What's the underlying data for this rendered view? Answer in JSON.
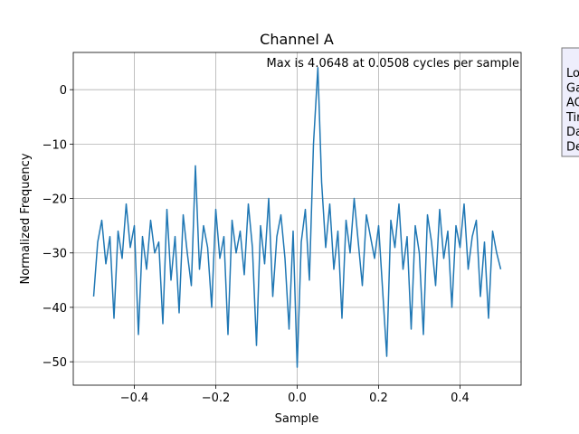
{
  "chart_data": {
    "type": "line",
    "title": "Channel A",
    "xlabel": "Sample",
    "ylabel": "Normalized Frequency",
    "annotation": "Max is 4.0648 at 0.0508 cycles per sample",
    "side_box_lines": [
      "Lo",
      "Ga",
      "AC",
      "Tir",
      "Da",
      "De"
    ],
    "grid": true,
    "xlim": [
      -0.55,
      0.55
    ],
    "ylim": [
      -54.3,
      6.84
    ],
    "xticks": [
      {
        "value": -0.4,
        "label": "−0.4"
      },
      {
        "value": -0.2,
        "label": "−0.2"
      },
      {
        "value": 0,
        "label": "0.0"
      },
      {
        "value": 0.2,
        "label": "0.2"
      },
      {
        "value": 0.4,
        "label": "0.4"
      }
    ],
    "yticks": [
      {
        "value": -50,
        "label": "−50"
      },
      {
        "value": -40,
        "label": "−40"
      },
      {
        "value": -30,
        "label": "−30"
      },
      {
        "value": -20,
        "label": "−20"
      },
      {
        "value": -10,
        "label": "−10"
      },
      0
    ],
    "x": [
      -0.5,
      -0.49,
      -0.48,
      -0.47,
      -0.46,
      -0.45,
      -0.44,
      -0.43,
      -0.42,
      -0.41,
      -0.4,
      -0.39,
      -0.38,
      -0.37,
      -0.36,
      -0.35,
      -0.34,
      -0.33,
      -0.32,
      -0.31,
      -0.3,
      -0.29,
      -0.28,
      -0.27,
      -0.26,
      -0.25,
      -0.24,
      -0.23,
      -0.22,
      -0.21,
      -0.2,
      -0.19,
      -0.18,
      -0.17,
      -0.16,
      -0.15,
      -0.14,
      -0.13,
      -0.12,
      -0.11,
      -0.1,
      -0.09,
      -0.08,
      -0.07,
      -0.06,
      -0.05,
      -0.04,
      -0.03,
      -0.02,
      -0.01,
      0,
      0.01,
      0.02,
      0.03,
      0.04,
      0.0508,
      0.06,
      0.07,
      0.08,
      0.09,
      0.1,
      0.11,
      0.12,
      0.13,
      0.14,
      0.15,
      0.16,
      0.17,
      0.18,
      0.19,
      0.2,
      0.21,
      0.22,
      0.23,
      0.24,
      0.25,
      0.26,
      0.27,
      0.28,
      0.29,
      0.3,
      0.31,
      0.32,
      0.33,
      0.34,
      0.35,
      0.36,
      0.37,
      0.38,
      0.39,
      0.4,
      0.41,
      0.42,
      0.43,
      0.44,
      0.45,
      0.46,
      0.47,
      0.48,
      0.49,
      0.5
    ],
    "series": [
      {
        "name": "Channel A",
        "color": "#1f77b4",
        "values": [
          -38,
          -28,
          -24,
          -32,
          -27,
          -42,
          -26,
          -31,
          -21,
          -29,
          -25,
          -45,
          -27,
          -33,
          -24,
          -30,
          -28,
          -43,
          -22,
          -35,
          -27,
          -41,
          -23,
          -30,
          -36,
          -14,
          -33,
          -25,
          -29,
          -40,
          -22,
          -31,
          -27,
          -45,
          -24,
          -30,
          -26,
          -34,
          -21,
          -29,
          -47,
          -25,
          -32,
          -20,
          -38,
          -27,
          -23,
          -31,
          -44,
          -26,
          -51,
          -28,
          -22,
          -35,
          -10,
          4.06,
          -17,
          -29,
          -21,
          -33,
          -26,
          -42,
          -24,
          -30,
          -20,
          -28,
          -36,
          -23,
          -27,
          -31,
          -25,
          -37,
          -49,
          -24,
          -29,
          -21,
          -33,
          -27,
          -44,
          -25,
          -30,
          -45,
          -23,
          -28,
          -36,
          -22,
          -31,
          -26,
          -40,
          -25,
          -29,
          -21,
          -33,
          -27,
          -24,
          -38,
          -28,
          -42,
          -26,
          -30,
          -33
        ]
      }
    ]
  }
}
